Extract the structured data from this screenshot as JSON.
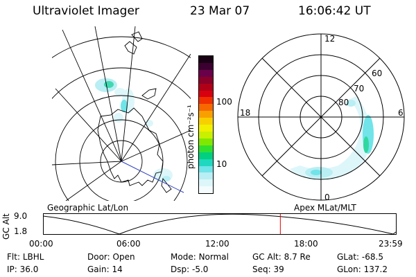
{
  "header": {
    "title": "Ultraviolet Imager",
    "date": "23 Mar 07",
    "time": "16:06:42 UT"
  },
  "colorbar": {
    "label": "photon cm⁻²s⁻¹",
    "ticks": [
      "100",
      "10"
    ],
    "colors": [
      "#1a0014",
      "#3c0030",
      "#6a004a",
      "#8a0028",
      "#b00018",
      "#d80010",
      "#f03000",
      "#f86800",
      "#f8a000",
      "#f8d000",
      "#f0f000",
      "#c8f000",
      "#80e800",
      "#30e030",
      "#00d080",
      "#20d8c0",
      "#70e4e8",
      "#b8eef4",
      "#ddf6fa",
      "#f4fcfd"
    ]
  },
  "map_labels": {
    "geographic": "Geographic Lat/Lon",
    "apex": "Apex MLat/MLT"
  },
  "polar_labels": {
    "top": "12",
    "bottom": "0",
    "left": "18",
    "right": "6",
    "lat60": "60",
    "lat70": "70",
    "lat80": "80"
  },
  "altitude_plot": {
    "ylabel": "GC Alt",
    "ytick_top": "9.0",
    "ytick_bottom": "1.8",
    "xticks": [
      "00:00",
      "06:00",
      "12:00",
      "18:00",
      "23:59"
    ],
    "marker_time_hours": 16.11,
    "marker_color": "#e00000"
  },
  "footer": {
    "row1": [
      {
        "label": "Flt:",
        "value": "LBHL"
      },
      {
        "label": "Door:",
        "value": "Open"
      },
      {
        "label": "Mode:",
        "value": "Normal"
      },
      {
        "label": "GC Alt:",
        "value": "8.7 Re"
      },
      {
        "label": "GLat:",
        "value": "-68.5"
      }
    ],
    "row2": [
      {
        "label": "IP:",
        "value": "36.0"
      },
      {
        "label": "Gain:",
        "value": "14"
      },
      {
        "label": "Dsp:",
        "value": "-5.0"
      },
      {
        "label": "Seq:",
        "value": "39"
      },
      {
        "label": "GLon:",
        "value": "137.2"
      }
    ]
  }
}
